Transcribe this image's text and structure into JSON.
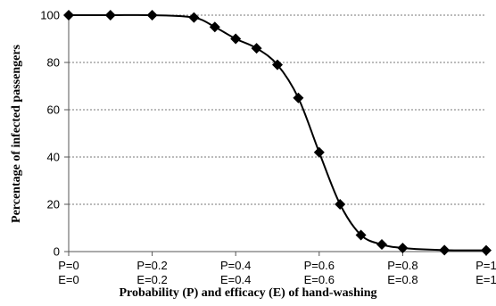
{
  "chart_data": {
    "type": "line",
    "title": "",
    "xlabel": "Probability (P) and efficacy (E) of hand-washing",
    "ylabel": "Percentage of infected passengers",
    "xlim": [
      0,
      1
    ],
    "ylim": [
      0,
      100
    ],
    "y_ticks": [
      0,
      20,
      40,
      60,
      80,
      100
    ],
    "x_ticks": [
      {
        "value": 0,
        "line1": "P=0",
        "line2": "E=0"
      },
      {
        "value": 0.2,
        "line1": "P=0.2",
        "line2": "E=0.2"
      },
      {
        "value": 0.4,
        "line1": "P=0.4",
        "line2": "E=0.4"
      },
      {
        "value": 0.6,
        "line1": "P=0.6",
        "line2": "E=0.6"
      },
      {
        "value": 0.8,
        "line1": "P=0.8",
        "line2": "E=0.8"
      },
      {
        "value": 1,
        "line1": "P=1",
        "line2": "E=1"
      }
    ],
    "grid": "horizontal dotted",
    "marker": "diamond",
    "series": [
      {
        "x": [
          0,
          0.1,
          0.2,
          0.3,
          0.35,
          0.4,
          0.45,
          0.5,
          0.55,
          0.6,
          0.65,
          0.7,
          0.75,
          0.8,
          0.9,
          1.0
        ],
        "y": [
          100,
          100,
          100,
          99,
          95,
          90,
          86,
          79,
          65,
          42,
          20,
          7,
          3,
          1.5,
          0.6,
          0.5
        ]
      }
    ]
  }
}
